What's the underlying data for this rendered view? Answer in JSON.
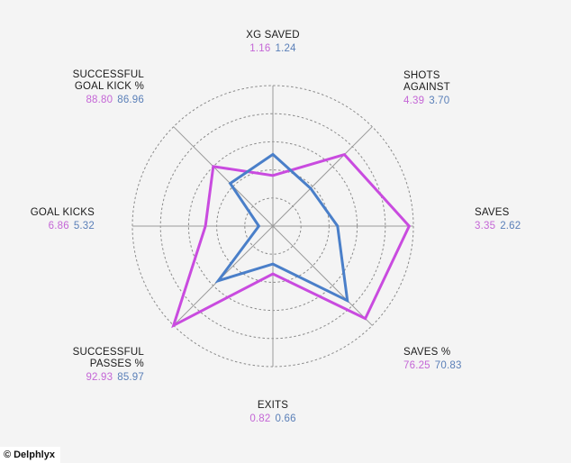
{
  "chart_data": {
    "type": "radar",
    "title": "",
    "axes": [
      {
        "name": [
          "XG SAVED"
        ],
        "p1": "1.16",
        "p2": "1.24"
      },
      {
        "name": [
          "SHOTS",
          "AGAINST"
        ],
        "p1": "4.39",
        "p2": "3.70"
      },
      {
        "name": [
          "SAVES"
        ],
        "p1": "3.35",
        "p2": "2.62"
      },
      {
        "name": [
          "SAVES %"
        ],
        "p1": "76.25",
        "p2": "70.83"
      },
      {
        "name": [
          "EXITS"
        ],
        "p1": "0.82",
        "p2": "0.66"
      },
      {
        "name": [
          "SUCCESSFUL",
          "PASSES %"
        ],
        "p1": "92.93",
        "p2": "85.97"
      },
      {
        "name": [
          "GOAL KICKS"
        ],
        "p1": "6.86",
        "p2": "5.32"
      },
      {
        "name": [
          "SUCCESSFUL",
          "GOAL KICK %"
        ],
        "p1": "88.80",
        "p2": "86.96"
      }
    ],
    "series": [
      {
        "color": "#c94bdf",
        "radial_fraction": [
          0.36,
          0.72,
          0.97,
          0.93,
          0.34,
          1.0,
          0.48,
          0.6
        ]
      },
      {
        "color": "#4a7fc9",
        "radial_fraction": [
          0.51,
          0.38,
          0.46,
          0.75,
          0.27,
          0.55,
          0.1,
          0.43
        ]
      }
    ],
    "rings": 5,
    "grid": true
  },
  "logo": {
    "symbol": "©",
    "text": "Delphlyx"
  }
}
